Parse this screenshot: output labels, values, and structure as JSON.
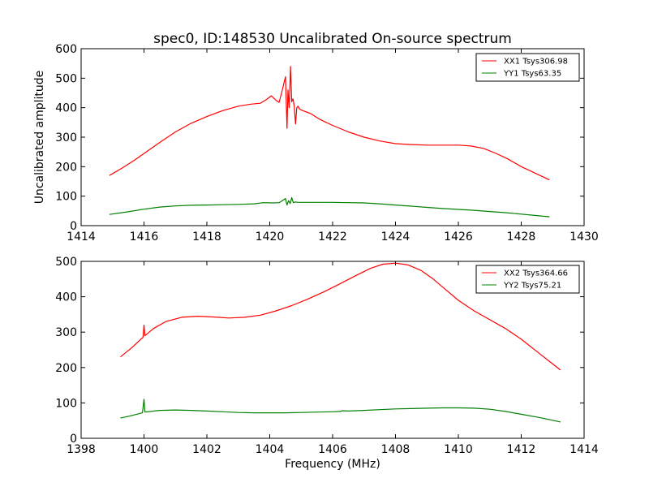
{
  "chart_data": [
    {
      "type": "line",
      "title": "spec0, ID:148530 Uncalibrated On-source spectrum",
      "xlabel": "",
      "ylabel": "Uncalibrated amplitude",
      "xlim": [
        1414,
        1430
      ],
      "ylim": [
        0,
        600
      ],
      "xticks": [
        1414,
        1416,
        1418,
        1420,
        1422,
        1424,
        1426,
        1428,
        1430
      ],
      "yticks": [
        0,
        100,
        200,
        300,
        400,
        500,
        600
      ],
      "legend_position": "top-right",
      "series": [
        {
          "name": "XX1 Tsys306.98",
          "color": "#ff0000",
          "x": [
            1414.9,
            1415.3,
            1415.7,
            1416.1,
            1416.5,
            1417.0,
            1417.5,
            1418.0,
            1418.5,
            1419.0,
            1419.4,
            1419.7,
            1419.9,
            1420.05,
            1420.2,
            1420.3,
            1420.4,
            1420.5,
            1420.55,
            1420.58,
            1420.62,
            1420.66,
            1420.7,
            1420.74,
            1420.78,
            1420.82,
            1420.86,
            1420.9,
            1420.95,
            1421.05,
            1421.3,
            1421.6,
            1422.0,
            1422.5,
            1423.0,
            1423.5,
            1424.0,
            1424.5,
            1425.0,
            1425.5,
            1426.0,
            1426.4,
            1426.8,
            1427.2,
            1427.6,
            1428.0,
            1428.4,
            1428.9
          ],
          "values": [
            170,
            195,
            222,
            252,
            282,
            318,
            347,
            370,
            390,
            405,
            412,
            415,
            428,
            440,
            425,
            418,
            460,
            505,
            330,
            460,
            400,
            540,
            420,
            430,
            405,
            345,
            400,
            405,
            395,
            390,
            380,
            360,
            340,
            318,
            300,
            287,
            278,
            275,
            273,
            273,
            273,
            270,
            262,
            245,
            225,
            200,
            180,
            155
          ]
        },
        {
          "name": "YY1 Tsys63.35",
          "color": "#008000",
          "x": [
            1414.9,
            1415.5,
            1416.0,
            1416.5,
            1417.0,
            1417.5,
            1418.0,
            1418.5,
            1419.0,
            1419.5,
            1419.8,
            1420.1,
            1420.3,
            1420.5,
            1420.55,
            1420.6,
            1420.65,
            1420.7,
            1420.75,
            1420.8,
            1420.9,
            1421.2,
            1421.5,
            1422.0,
            1422.5,
            1423.0,
            1423.5,
            1424.0,
            1424.5,
            1425.0,
            1425.5,
            1426.0,
            1426.5,
            1427.0,
            1427.5,
            1428.0,
            1428.5,
            1428.9
          ],
          "values": [
            38,
            47,
            56,
            63,
            67,
            69,
            70,
            71,
            72,
            74,
            78,
            77,
            78,
            92,
            70,
            85,
            75,
            95,
            78,
            80,
            79,
            79,
            79,
            79,
            78,
            77,
            74,
            70,
            66,
            62,
            58,
            55,
            52,
            48,
            44,
            39,
            34,
            30
          ]
        }
      ]
    },
    {
      "type": "line",
      "title": "",
      "xlabel": "Frequency (MHz)",
      "ylabel": "",
      "xlim": [
        1398,
        1414
      ],
      "ylim": [
        0,
        500
      ],
      "xticks": [
        1398,
        1400,
        1402,
        1404,
        1406,
        1408,
        1410,
        1412,
        1414
      ],
      "yticks": [
        0,
        100,
        200,
        300,
        400,
        500
      ],
      "legend_position": "top-right",
      "series": [
        {
          "name": "XX2 Tsys364.66",
          "color": "#ff0000",
          "x": [
            1399.25,
            1399.6,
            1399.9,
            1399.97,
            1400.0,
            1400.03,
            1400.3,
            1400.7,
            1401.2,
            1401.7,
            1402.2,
            1402.7,
            1403.2,
            1403.7,
            1404.2,
            1404.7,
            1405.2,
            1405.7,
            1406.2,
            1406.7,
            1407.2,
            1407.6,
            1408.0,
            1408.4,
            1408.8,
            1409.2,
            1409.6,
            1410.0,
            1410.5,
            1411.0,
            1411.5,
            1412.0,
            1412.5,
            1413.0,
            1413.25
          ],
          "values": [
            230,
            255,
            280,
            285,
            320,
            290,
            310,
            330,
            342,
            345,
            343,
            340,
            342,
            348,
            360,
            375,
            393,
            413,
            435,
            458,
            480,
            492,
            495,
            490,
            475,
            450,
            420,
            390,
            360,
            335,
            310,
            280,
            245,
            210,
            193
          ]
        },
        {
          "name": "YY2 Tsys75.21",
          "color": "#008000",
          "x": [
            1399.25,
            1399.6,
            1399.95,
            1400.0,
            1400.03,
            1400.5,
            1401.0,
            1401.5,
            1402.0,
            1402.5,
            1403.0,
            1403.5,
            1404.0,
            1404.5,
            1405.0,
            1405.5,
            1406.0,
            1406.25,
            1406.3,
            1406.5,
            1407.0,
            1407.5,
            1408.0,
            1408.5,
            1409.0,
            1409.5,
            1410.0,
            1410.5,
            1411.0,
            1411.5,
            1412.0,
            1412.5,
            1413.0,
            1413.25
          ],
          "values": [
            57,
            64,
            72,
            110,
            74,
            79,
            80,
            79,
            77,
            75,
            73,
            72,
            72,
            72,
            73,
            74,
            75,
            76,
            78,
            77,
            79,
            81,
            83,
            84,
            85,
            86,
            86,
            85,
            82,
            76,
            68,
            60,
            51,
            46
          ]
        }
      ]
    }
  ]
}
